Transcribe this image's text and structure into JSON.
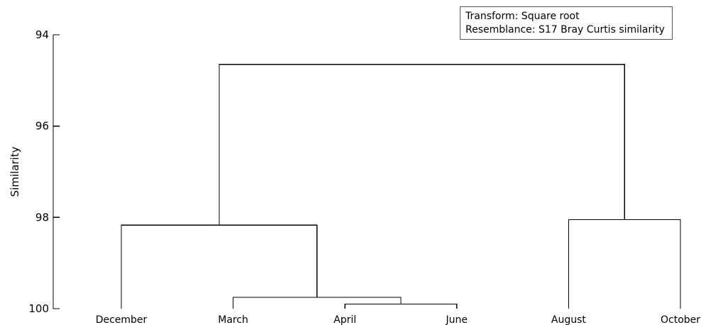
{
  "chart_data": {
    "type": "dendrogram",
    "ylabel": "Similarity",
    "ylim": [
      94,
      100
    ],
    "y_inverted": true,
    "yticks": [
      94,
      96,
      98,
      100
    ],
    "grid": false,
    "legend_placement": "top-right",
    "annotation": {
      "transform": "Transform: Square root",
      "resemblance": "Resemblance: S17 Bray Curtis similarity"
    },
    "leaves": [
      "December",
      "March",
      "April",
      "June",
      "August",
      "October"
    ],
    "merges": [
      {
        "left": "April",
        "right": "June",
        "similarity": 99.9
      },
      {
        "left": "March",
        "right": "April+June",
        "similarity": 99.75
      },
      {
        "left": "December",
        "right": "March+April+June",
        "similarity": 98.17
      },
      {
        "left": "August",
        "right": "October",
        "similarity": 98.05
      },
      {
        "left": "December+March+April+June",
        "right": "August+October",
        "similarity": 94.65
      }
    ]
  }
}
